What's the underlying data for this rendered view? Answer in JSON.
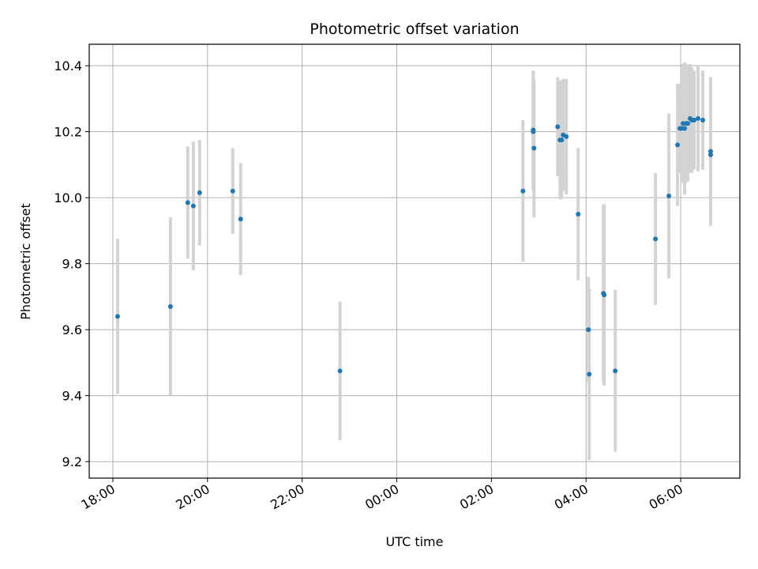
{
  "chart_data": {
    "type": "scatter",
    "title": "Photometric offset variation",
    "xlabel": "UTC time",
    "ylabel": "Photometric offset",
    "x_axis": "time (hours, UTC, relative to 00:00 of the second day; negative = previous evening)",
    "xlim": [
      "17:30",
      "07:15"
    ],
    "ylim": [
      9.15,
      10.465
    ],
    "x_ticks": [
      {
        "label": "18:00",
        "value": -6
      },
      {
        "label": "20:00",
        "value": -4
      },
      {
        "label": "22:00",
        "value": -2
      },
      {
        "label": "00:00",
        "value": 0
      },
      {
        "label": "02:00",
        "value": 2
      },
      {
        "label": "04:00",
        "value": 4
      },
      {
        "label": "06:00",
        "value": 6
      }
    ],
    "y_ticks": [
      "9.2",
      "9.4",
      "9.6",
      "9.8",
      "10.0",
      "10.2",
      "10.4"
    ],
    "grid": true,
    "legend": "none",
    "colors": {
      "point": "#1f77b4",
      "errorbar": "#d3d3d3",
      "grid": "#b0b0b0"
    },
    "series": [
      {
        "x": [
          "18:06",
          "19:13",
          "19:35",
          "19:42",
          "19:50",
          "20:32",
          "20:42",
          "22:48",
          "02:40",
          "02:53",
          "02:53",
          "02:54",
          "03:24",
          "03:27",
          "03:29",
          "03:31",
          "03:35",
          "03:50",
          "04:03",
          "04:04",
          "04:22",
          "04:23",
          "04:37",
          "05:28",
          "05:45",
          "05:56",
          "05:59",
          "06:01",
          "06:03",
          "06:05",
          "06:07",
          "06:09",
          "06:12",
          "06:14",
          "06:17",
          "06:22",
          "06:28",
          "06:38",
          "06:38"
        ],
        "y": [
          9.64,
          9.67,
          9.985,
          9.975,
          10.015,
          10.02,
          9.935,
          9.475,
          10.02,
          10.205,
          10.2,
          10.15,
          10.215,
          10.175,
          10.175,
          10.19,
          10.185,
          9.95,
          9.6,
          9.465,
          9.71,
          9.705,
          9.475,
          9.875,
          10.005,
          10.16,
          10.21,
          10.21,
          10.225,
          10.21,
          10.225,
          10.225,
          10.24,
          10.235,
          10.235,
          10.24,
          10.235,
          10.13,
          10.14
        ],
        "yerr": [
          0.235,
          0.27,
          0.17,
          0.195,
          0.16,
          0.13,
          0.17,
          0.21,
          0.215,
          0.18,
          0.18,
          0.21,
          0.15,
          0.18,
          0.18,
          0.17,
          0.175,
          0.2,
          0.16,
          0.26,
          0.27,
          0.275,
          0.245,
          0.2,
          0.25,
          0.185,
          0.135,
          0.135,
          0.18,
          0.2,
          0.18,
          0.175,
          0.165,
          0.16,
          0.15,
          0.16,
          0.15,
          0.21,
          0.225
        ]
      }
    ]
  }
}
